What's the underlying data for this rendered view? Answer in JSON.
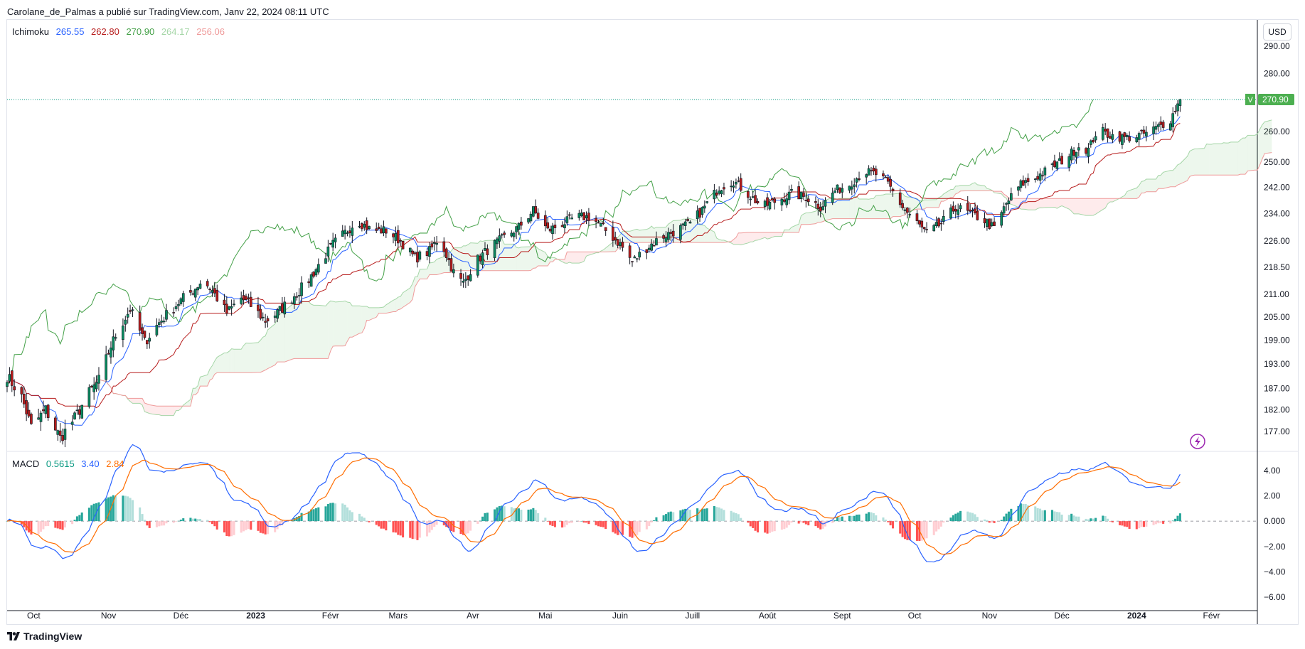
{
  "header": {
    "text": "Carolane_de_Palmas a publié sur TradingView.com, Janv 22, 2024 08:11 UTC"
  },
  "currency": "USD",
  "footer": {
    "logo_text": "TradingView"
  },
  "colors": {
    "up": "#089981",
    "down": "#f23645",
    "candle_up": "#0b8b60",
    "candle_down": "#b71c1c",
    "conversion": "#2962ff",
    "base": "#b71c1c",
    "lagging": "#43a047",
    "leadA": "#a5d6a7",
    "leadB": "#ef9a9a",
    "cloud_up": "rgba(76,175,80,0.10)",
    "cloud_down": "rgba(242,54,69,0.10)",
    "macd": "#2962ff",
    "signal": "#ff6d00",
    "hist_up_strong": "#26a69a",
    "hist_up_weak": "#b2dfdb",
    "hist_down_strong": "#ff5252",
    "hist_down_weak": "#ffcdd2",
    "price_badge": "#4caf50"
  },
  "ichimoku_legend": {
    "name": "Ichimoku",
    "values": [
      "265.55",
      "262.80",
      "270.90",
      "264.17",
      "256.06"
    ]
  },
  "macd_legend": {
    "name": "MACD",
    "values": [
      "0.5615",
      "3.40",
      "2.84"
    ]
  },
  "price_badge": {
    "letter": "V",
    "value": "270.90"
  },
  "chart_data": {
    "type": "candlestick",
    "x_axis_labels": [
      "Oct",
      "Nov",
      "Déc",
      "2023",
      "Févr",
      "Mars",
      "Avr",
      "Mai",
      "Juin",
      "Juill",
      "Août",
      "Sept",
      "Oct",
      "Nov",
      "Déc",
      "2024",
      "Févr"
    ],
    "x_axis_label_dates": [
      "2022-10-01",
      "2022-11-01",
      "2022-12-01",
      "2023-01-01",
      "2023-02-01",
      "2023-03-01",
      "2023-04-01",
      "2023-05-01",
      "2023-06-01",
      "2023-07-01",
      "2023-08-01",
      "2023-09-01",
      "2023-10-01",
      "2023-11-01",
      "2023-12-01",
      "2024-01-01",
      "2024-02-01"
    ],
    "bold_labels": [
      "2023",
      "2024"
    ],
    "price_axis": {
      "scale": "log",
      "ticks": [
        290,
        280,
        260,
        250,
        242,
        234,
        226,
        218.5,
        211,
        205,
        199,
        193,
        187,
        182,
        177
      ],
      "tick_labels": [
        "290.00",
        "280.00",
        "260.00",
        "250.00",
        "242.00",
        "234.00",
        "226.00",
        "218.50",
        "211.00",
        "205.00",
        "199.00",
        "193.00",
        "187.00",
        "182.00",
        "177.00"
      ],
      "range": [
        173,
        300
      ],
      "last_price": 270.9
    },
    "macd_axis": {
      "ticks": [
        4,
        2,
        0,
        -2,
        -4,
        -6
      ],
      "tick_labels": [
        "4.00",
        "2.00",
        "0.000",
        "−2.00",
        "−4.00",
        "−6.00"
      ],
      "range": [
        -7,
        5.5
      ]
    },
    "close_anchors": [
      [
        "2022-09-20",
        190.0
      ],
      [
        "2022-09-26",
        185.0
      ],
      [
        "2022-09-30",
        178.0
      ],
      [
        "2022-10-06",
        182.0
      ],
      [
        "2022-10-12",
        175.5
      ],
      [
        "2022-10-18",
        180.0
      ],
      [
        "2022-10-24",
        186.0
      ],
      [
        "2022-10-28",
        189.0
      ],
      [
        "2022-11-02",
        197.5
      ],
      [
        "2022-11-05",
        201.5
      ],
      [
        "2022-11-10",
        207.0
      ],
      [
        "2022-11-16",
        198.5
      ],
      [
        "2022-11-22",
        203.5
      ],
      [
        "2022-11-28",
        207.5
      ],
      [
        "2022-12-02",
        210.0
      ],
      [
        "2022-12-06",
        212.0
      ],
      [
        "2022-12-10",
        215.0
      ],
      [
        "2022-12-14",
        212.0
      ],
      [
        "2022-12-20",
        206.0
      ],
      [
        "2022-12-26",
        210.0
      ],
      [
        "2022-12-30",
        208.0
      ],
      [
        "2023-01-05",
        204.0
      ],
      [
        "2023-01-10",
        206.0
      ],
      [
        "2023-01-16",
        210.0
      ],
      [
        "2023-01-22",
        214.0
      ],
      [
        "2023-01-28",
        220.0
      ],
      [
        "2023-02-02",
        225.0
      ],
      [
        "2023-02-08",
        229.0
      ],
      [
        "2023-02-12",
        232.0
      ],
      [
        "2023-02-18",
        229.0
      ],
      [
        "2023-02-24",
        229.0
      ],
      [
        "2023-03-02",
        226.0
      ],
      [
        "2023-03-08",
        221.0
      ],
      [
        "2023-03-14",
        223.0
      ],
      [
        "2023-03-18",
        227.0
      ],
      [
        "2023-03-24",
        217.0
      ],
      [
        "2023-03-28",
        214.0
      ],
      [
        "2023-04-02",
        220.0
      ],
      [
        "2023-04-08",
        224.0
      ],
      [
        "2023-04-14",
        227.0
      ],
      [
        "2023-04-20",
        230.0
      ],
      [
        "2023-04-26",
        235.0
      ],
      [
        "2023-05-02",
        229.0
      ],
      [
        "2023-05-08",
        231.0
      ],
      [
        "2023-05-14",
        233.0
      ],
      [
        "2023-05-20",
        233.0
      ],
      [
        "2023-05-26",
        229.0
      ],
      [
        "2023-06-01",
        225.0
      ],
      [
        "2023-06-06",
        220.0
      ],
      [
        "2023-06-12",
        224.0
      ],
      [
        "2023-06-18",
        227.0
      ],
      [
        "2023-06-24",
        229.0
      ],
      [
        "2023-06-30",
        231.0
      ],
      [
        "2023-07-06",
        236.0
      ],
      [
        "2023-07-12",
        242.0
      ],
      [
        "2023-07-18",
        244.0
      ],
      [
        "2023-07-24",
        240.0
      ],
      [
        "2023-07-30",
        236.0
      ],
      [
        "2023-08-05",
        238.0
      ],
      [
        "2023-08-11",
        240.0
      ],
      [
        "2023-08-17",
        239.0
      ],
      [
        "2023-08-23",
        236.0
      ],
      [
        "2023-08-29",
        241.0
      ],
      [
        "2023-09-04",
        243.0
      ],
      [
        "2023-09-10",
        247.0
      ],
      [
        "2023-09-16",
        246.0
      ],
      [
        "2023-09-20",
        243.0
      ],
      [
        "2023-09-26",
        236.0
      ],
      [
        "2023-10-01",
        232.0
      ],
      [
        "2023-10-06",
        228.0
      ],
      [
        "2023-10-12",
        231.0
      ],
      [
        "2023-10-18",
        236.0
      ],
      [
        "2023-10-24",
        234.0
      ],
      [
        "2023-10-30",
        232.0
      ],
      [
        "2023-11-03",
        229.5
      ],
      [
        "2023-11-08",
        237.0
      ],
      [
        "2023-11-14",
        243.0
      ],
      [
        "2023-11-20",
        245.0
      ],
      [
        "2023-11-26",
        248.0
      ],
      [
        "2023-12-02",
        251.0
      ],
      [
        "2023-12-08",
        255.0
      ],
      [
        "2023-12-12",
        254.0
      ],
      [
        "2023-12-16",
        261.0
      ],
      [
        "2023-12-20",
        259.0
      ],
      [
        "2023-12-26",
        258.0
      ],
      [
        "2023-12-30",
        258.0
      ],
      [
        "2024-01-05",
        259.5
      ],
      [
        "2024-01-11",
        262.0
      ],
      [
        "2024-01-15",
        264.0
      ],
      [
        "2024-01-19",
        270.9
      ]
    ]
  }
}
